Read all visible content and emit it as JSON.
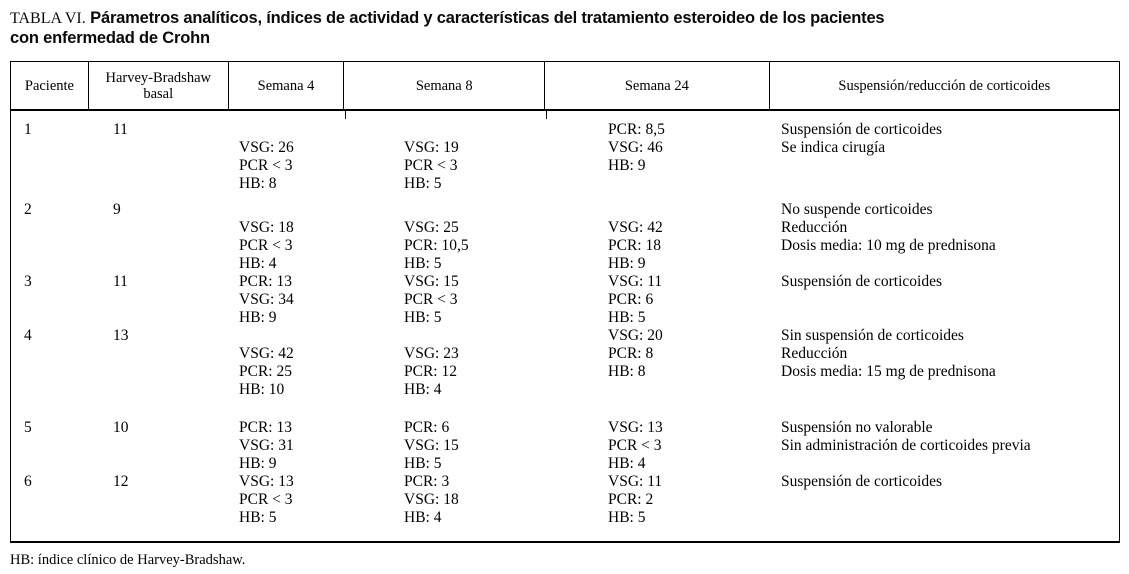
{
  "title": {
    "prefix": "TABLA VI.",
    "line1": "Párametros analíticos, índices de actividad y características del tratamiento esteroideo de los pacientes",
    "line2": "con enfermedad de Crohn"
  },
  "table": {
    "columns": [
      "Paciente",
      "Harvey-Bradshaw basal",
      "Semana 4",
      "Semana 8",
      "Semana 24",
      "Suspensión/reducción de corticoides"
    ],
    "rows": [
      {
        "paciente": "1",
        "basal": "11",
        "semana4": [
          "",
          "VSG: 26",
          "PCR < 3",
          "HB: 8"
        ],
        "semana8": [
          "",
          "VSG: 19",
          "PCR < 3",
          "HB: 5"
        ],
        "semana24": [
          "PCR: 8,5",
          "VSG: 46",
          "HB: 9"
        ],
        "suspension": [
          "Suspensión de corticoides",
          "Se indica cirugía"
        ]
      },
      {
        "paciente": "2",
        "basal": "9",
        "semana4": [
          "",
          "VSG: 18",
          "PCR < 3",
          "HB: 4"
        ],
        "semana8": [
          "",
          "VSG: 25",
          "PCR: 10,5",
          "HB: 5"
        ],
        "semana24": [
          "",
          "VSG: 42",
          "PCR: 18",
          "HB: 9"
        ],
        "suspension": [
          "No suspende corticoides",
          "Reducción",
          "Dosis media: 10 mg de prednisona"
        ]
      },
      {
        "paciente": "3",
        "basal": "11",
        "semana4": [
          "PCR: 13",
          "VSG: 34",
          "HB: 9"
        ],
        "semana8": [
          "VSG: 15",
          "PCR < 3",
          "HB: 5"
        ],
        "semana24": [
          "VSG: 11",
          "PCR: 6",
          "HB: 5"
        ],
        "suspension": [
          "Suspensión de corticoides"
        ]
      },
      {
        "paciente": "4",
        "basal": "13",
        "semana4": [
          "",
          "VSG: 42",
          "PCR: 25",
          "HB: 10"
        ],
        "semana8": [
          "",
          "VSG: 23",
          "PCR: 12",
          "HB: 4"
        ],
        "semana24": [
          "VSG: 20",
          "PCR: 8",
          "HB: 8"
        ],
        "suspension": [
          "Sin suspensión de corticoides",
          "Reducción",
          "Dosis media: 15 mg de prednisona"
        ]
      },
      {
        "paciente": "5",
        "basal": "10",
        "semana4": [
          "PCR: 13",
          "VSG: 31",
          "HB: 9"
        ],
        "semana8": [
          "PCR: 6",
          "VSG: 15",
          "HB: 5"
        ],
        "semana24": [
          "VSG: 13",
          "PCR < 3",
          "HB: 4"
        ],
        "suspension": [
          "Suspensión no valorable",
          "Sin administración de corticoides previa"
        ]
      },
      {
        "paciente": "6",
        "basal": "12",
        "semana4": [
          "VSG: 13",
          "PCR < 3",
          "HB: 5"
        ],
        "semana8": [
          "PCR: 3",
          "VSG: 18",
          "HB: 4"
        ],
        "semana24": [
          "VSG: 11",
          "PCR: 2",
          "HB: 5"
        ],
        "suspension": [
          "Suspensión de corticoides"
        ]
      }
    ]
  },
  "footnote": "HB: índice clínico de Harvey-Bradshaw."
}
